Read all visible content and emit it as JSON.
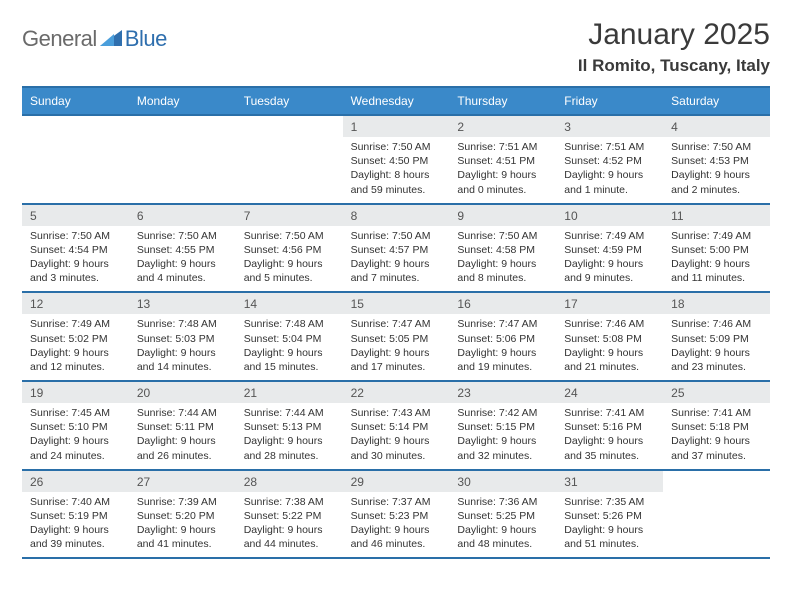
{
  "logo": {
    "text1": "General",
    "text2": "Blue",
    "icon_color": "#2f6fae"
  },
  "title": "January 2025",
  "subtitle": "Il Romito, Tuscany, Italy",
  "colors": {
    "header_bg": "#3a89c9",
    "header_border": "#2a6fa8",
    "daynum_bg": "#e8eaeb",
    "text": "#333333",
    "page_bg": "#ffffff"
  },
  "dayNames": [
    "Sunday",
    "Monday",
    "Tuesday",
    "Wednesday",
    "Thursday",
    "Friday",
    "Saturday"
  ],
  "weeks": [
    [
      {
        "empty": true
      },
      {
        "empty": true
      },
      {
        "empty": true
      },
      {
        "day": "1",
        "sunrise": "7:50 AM",
        "sunset": "4:50 PM",
        "daylight": "8 hours and 59 minutes."
      },
      {
        "day": "2",
        "sunrise": "7:51 AM",
        "sunset": "4:51 PM",
        "daylight": "9 hours and 0 minutes."
      },
      {
        "day": "3",
        "sunrise": "7:51 AM",
        "sunset": "4:52 PM",
        "daylight": "9 hours and 1 minute."
      },
      {
        "day": "4",
        "sunrise": "7:50 AM",
        "sunset": "4:53 PM",
        "daylight": "9 hours and 2 minutes."
      }
    ],
    [
      {
        "day": "5",
        "sunrise": "7:50 AM",
        "sunset": "4:54 PM",
        "daylight": "9 hours and 3 minutes."
      },
      {
        "day": "6",
        "sunrise": "7:50 AM",
        "sunset": "4:55 PM",
        "daylight": "9 hours and 4 minutes."
      },
      {
        "day": "7",
        "sunrise": "7:50 AM",
        "sunset": "4:56 PM",
        "daylight": "9 hours and 5 minutes."
      },
      {
        "day": "8",
        "sunrise": "7:50 AM",
        "sunset": "4:57 PM",
        "daylight": "9 hours and 7 minutes."
      },
      {
        "day": "9",
        "sunrise": "7:50 AM",
        "sunset": "4:58 PM",
        "daylight": "9 hours and 8 minutes."
      },
      {
        "day": "10",
        "sunrise": "7:49 AM",
        "sunset": "4:59 PM",
        "daylight": "9 hours and 9 minutes."
      },
      {
        "day": "11",
        "sunrise": "7:49 AM",
        "sunset": "5:00 PM",
        "daylight": "9 hours and 11 minutes."
      }
    ],
    [
      {
        "day": "12",
        "sunrise": "7:49 AM",
        "sunset": "5:02 PM",
        "daylight": "9 hours and 12 minutes."
      },
      {
        "day": "13",
        "sunrise": "7:48 AM",
        "sunset": "5:03 PM",
        "daylight": "9 hours and 14 minutes."
      },
      {
        "day": "14",
        "sunrise": "7:48 AM",
        "sunset": "5:04 PM",
        "daylight": "9 hours and 15 minutes."
      },
      {
        "day": "15",
        "sunrise": "7:47 AM",
        "sunset": "5:05 PM",
        "daylight": "9 hours and 17 minutes."
      },
      {
        "day": "16",
        "sunrise": "7:47 AM",
        "sunset": "5:06 PM",
        "daylight": "9 hours and 19 minutes."
      },
      {
        "day": "17",
        "sunrise": "7:46 AM",
        "sunset": "5:08 PM",
        "daylight": "9 hours and 21 minutes."
      },
      {
        "day": "18",
        "sunrise": "7:46 AM",
        "sunset": "5:09 PM",
        "daylight": "9 hours and 23 minutes."
      }
    ],
    [
      {
        "day": "19",
        "sunrise": "7:45 AM",
        "sunset": "5:10 PM",
        "daylight": "9 hours and 24 minutes."
      },
      {
        "day": "20",
        "sunrise": "7:44 AM",
        "sunset": "5:11 PM",
        "daylight": "9 hours and 26 minutes."
      },
      {
        "day": "21",
        "sunrise": "7:44 AM",
        "sunset": "5:13 PM",
        "daylight": "9 hours and 28 minutes."
      },
      {
        "day": "22",
        "sunrise": "7:43 AM",
        "sunset": "5:14 PM",
        "daylight": "9 hours and 30 minutes."
      },
      {
        "day": "23",
        "sunrise": "7:42 AM",
        "sunset": "5:15 PM",
        "daylight": "9 hours and 32 minutes."
      },
      {
        "day": "24",
        "sunrise": "7:41 AM",
        "sunset": "5:16 PM",
        "daylight": "9 hours and 35 minutes."
      },
      {
        "day": "25",
        "sunrise": "7:41 AM",
        "sunset": "5:18 PM",
        "daylight": "9 hours and 37 minutes."
      }
    ],
    [
      {
        "day": "26",
        "sunrise": "7:40 AM",
        "sunset": "5:19 PM",
        "daylight": "9 hours and 39 minutes."
      },
      {
        "day": "27",
        "sunrise": "7:39 AM",
        "sunset": "5:20 PM",
        "daylight": "9 hours and 41 minutes."
      },
      {
        "day": "28",
        "sunrise": "7:38 AM",
        "sunset": "5:22 PM",
        "daylight": "9 hours and 44 minutes."
      },
      {
        "day": "29",
        "sunrise": "7:37 AM",
        "sunset": "5:23 PM",
        "daylight": "9 hours and 46 minutes."
      },
      {
        "day": "30",
        "sunrise": "7:36 AM",
        "sunset": "5:25 PM",
        "daylight": "9 hours and 48 minutes."
      },
      {
        "day": "31",
        "sunrise": "7:35 AM",
        "sunset": "5:26 PM",
        "daylight": "9 hours and 51 minutes."
      },
      {
        "empty": true
      }
    ]
  ]
}
